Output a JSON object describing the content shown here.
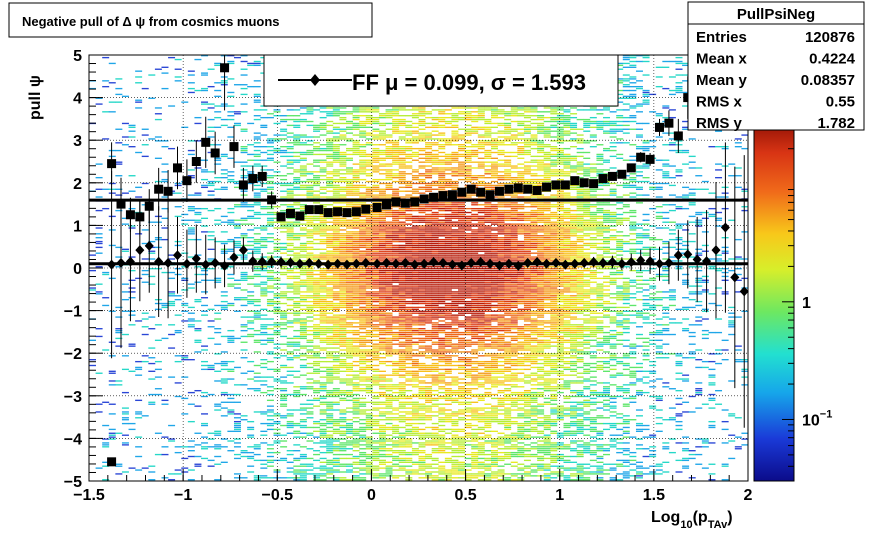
{
  "chart_data": {
    "type": "heatmap",
    "title": "Negative pull of Δ ψ from cosmics muons",
    "xlabel": "Log10(pTAv)",
    "xlabel_main": "Log",
    "xlabel_sub1": "10",
    "xlabel_paren_open": "(p",
    "xlabel_sub2": "TAv",
    "xlabel_paren_close": ")",
    "ylabel": "pull ψ",
    "xlim": [
      -1.5,
      2.0
    ],
    "ylim": [
      -5,
      5
    ],
    "x_ticks": [
      {
        "v": -1.5,
        "label": "−1.5"
      },
      {
        "v": -1.0,
        "label": "−1"
      },
      {
        "v": -0.5,
        "label": "−0.5"
      },
      {
        "v": 0.0,
        "label": "0"
      },
      {
        "v": 0.5,
        "label": "0.5"
      },
      {
        "v": 1.0,
        "label": "1"
      },
      {
        "v": 1.5,
        "label": "1.5"
      },
      {
        "v": 2.0,
        "label": "2"
      }
    ],
    "y_ticks": [
      {
        "v": 5,
        "label": "5"
      },
      {
        "v": 4,
        "label": "4"
      },
      {
        "v": 3,
        "label": "3"
      },
      {
        "v": 2,
        "label": "2"
      },
      {
        "v": 1,
        "label": "1"
      },
      {
        "v": 0,
        "label": "0"
      },
      {
        "v": -1,
        "label": "−1"
      },
      {
        "v": -2,
        "label": "−2"
      },
      {
        "v": -3,
        "label": "−3"
      },
      {
        "v": -4,
        "label": "−4"
      },
      {
        "v": -5,
        "label": "−5"
      }
    ],
    "grid": true,
    "colorbar": {
      "scale": "log",
      "range": [
        0.03,
        30
      ],
      "ticks": [
        {
          "v": 1,
          "label": "1"
        },
        {
          "v": 0.1,
          "label_main": "10",
          "label_exp": "−1"
        }
      ]
    },
    "stats": {
      "name": "PullPsiNeg",
      "rows": [
        {
          "label": "Entries",
          "value": "120876"
        },
        {
          "label": "Mean x",
          "value": "0.4224"
        },
        {
          "label": "Mean y",
          "value": "0.08357"
        },
        {
          "label": "RMS x",
          "value": "0.55"
        },
        {
          "label": "RMS y",
          "value": "1.782"
        }
      ]
    },
    "legend": {
      "text": "FF μ =  0.099, σ =   1.593",
      "placement": "top-center"
    },
    "fit_lines": {
      "mu": 0.099,
      "sigma": 1.593
    },
    "series": [
      {
        "marker": "diamond",
        "x": [
          -1.38,
          -1.33,
          -1.28,
          -1.23,
          -1.18,
          -1.13,
          -1.08,
          -1.03,
          -0.98,
          -0.93,
          -0.88,
          -0.83,
          -0.78,
          -0.73,
          -0.68,
          -0.63,
          -0.58,
          -0.53,
          -0.48,
          -0.43,
          -0.38,
          -0.33,
          -0.28,
          -0.23,
          -0.18,
          -0.13,
          -0.08,
          -0.03,
          0.03,
          0.08,
          0.13,
          0.18,
          0.23,
          0.28,
          0.33,
          0.38,
          0.43,
          0.48,
          0.53,
          0.58,
          0.63,
          0.68,
          0.73,
          0.78,
          0.83,
          0.88,
          0.93,
          0.98,
          1.03,
          1.08,
          1.13,
          1.18,
          1.23,
          1.28,
          1.33,
          1.38,
          1.43,
          1.48,
          1.53,
          1.58,
          1.63,
          1.68,
          1.73,
          1.78,
          1.83,
          1.88,
          1.93,
          1.98
        ],
        "y": [
          0.08,
          0.12,
          0.15,
          0.42,
          0.52,
          0.15,
          0.12,
          0.3,
          0.1,
          0.22,
          0.08,
          0.12,
          0.05,
          0.25,
          0.42,
          0.16,
          0.15,
          0.15,
          0.14,
          0.13,
          0.1,
          0.12,
          0.1,
          0.08,
          0.1,
          0.08,
          0.1,
          0.12,
          0.1,
          0.12,
          0.1,
          0.12,
          0.08,
          0.1,
          0.14,
          0.12,
          0.08,
          0.06,
          0.12,
          0.14,
          0.1,
          0.06,
          0.1,
          0.05,
          0.12,
          0.14,
          0.1,
          0.12,
          0.08,
          0.1,
          0.12,
          0.14,
          0.12,
          0.14,
          0.1,
          0.14,
          0.18,
          0.16,
          0.1,
          0.12,
          0.3,
          0.32,
          0.2,
          0.16,
          0.42,
          0.95,
          -0.22,
          -0.55
        ],
        "yerr": [
          2.2,
          2.0,
          1.4,
          1.2,
          1.1,
          1.3,
          1.3,
          0.9,
          0.8,
          0.8,
          0.7,
          0.6,
          0.5,
          0.4,
          0.3,
          0.25,
          0.2,
          0.15,
          0.13,
          0.12,
          0.1,
          0.1,
          0.1,
          0.1,
          0.1,
          0.1,
          0.1,
          0.1,
          0.1,
          0.1,
          0.1,
          0.1,
          0.1,
          0.1,
          0.1,
          0.1,
          0.1,
          0.1,
          0.1,
          0.1,
          0.1,
          0.1,
          0.1,
          0.1,
          0.1,
          0.1,
          0.1,
          0.1,
          0.1,
          0.1,
          0.1,
          0.12,
          0.12,
          0.15,
          0.15,
          0.2,
          0.25,
          0.3,
          0.4,
          0.5,
          0.6,
          0.8,
          1.0,
          1.2,
          1.6,
          2.0,
          2.6,
          3.2
        ]
      },
      {
        "marker": "square",
        "x": [
          -1.38,
          -1.33,
          -1.28,
          -1.23,
          -1.18,
          -1.13,
          -1.08,
          -1.03,
          -0.98,
          -0.93,
          -0.88,
          -0.83,
          -0.78,
          -0.73,
          -0.68,
          -0.63,
          -0.58,
          -0.53,
          -0.48,
          -0.43,
          -0.38,
          -0.33,
          -0.28,
          -0.23,
          -0.18,
          -0.13,
          -0.08,
          -0.03,
          0.03,
          0.08,
          0.13,
          0.18,
          0.23,
          0.28,
          0.33,
          0.38,
          0.43,
          0.48,
          0.53,
          0.58,
          0.63,
          0.68,
          0.73,
          0.78,
          0.83,
          0.88,
          0.93,
          0.98,
          1.03,
          1.08,
          1.13,
          1.18,
          1.23,
          1.28,
          1.33,
          1.38,
          1.43,
          1.48,
          1.53,
          1.58,
          1.63,
          1.68,
          1.73,
          1.78,
          1.83,
          1.88,
          1.93,
          1.98
        ],
        "y": [
          2.45,
          1.5,
          1.25,
          1.2,
          1.45,
          1.85,
          1.8,
          2.35,
          2.05,
          2.5,
          2.95,
          2.7,
          4.7,
          2.85,
          1.95,
          2.1,
          2.15,
          1.6,
          1.2,
          1.28,
          1.22,
          1.37,
          1.37,
          1.3,
          1.32,
          1.3,
          1.32,
          1.38,
          1.42,
          1.48,
          1.55,
          1.52,
          1.55,
          1.62,
          1.66,
          1.7,
          1.72,
          1.78,
          1.85,
          1.78,
          1.72,
          1.8,
          1.85,
          1.88,
          1.85,
          1.82,
          1.9,
          1.95,
          1.95,
          2.05,
          2.0,
          1.98,
          2.1,
          2.15,
          2.2,
          2.35,
          2.6,
          2.55,
          3.3,
          3.4,
          3.1,
          4.0,
          3.95,
          4.5,
          4.45,
          4.35,
          4.3,
          4.25
        ],
        "yerr": [
          0.5,
          0.4,
          0.4,
          0.4,
          0.4,
          0.5,
          0.5,
          0.5,
          0.5,
          0.5,
          0.6,
          0.5,
          1.0,
          0.5,
          0.4,
          0.3,
          0.25,
          0.2,
          0.1,
          0.08,
          0.07,
          0.06,
          0.05,
          0.05,
          0.05,
          0.05,
          0.05,
          0.05,
          0.05,
          0.05,
          0.05,
          0.05,
          0.05,
          0.05,
          0.05,
          0.05,
          0.05,
          0.05,
          0.05,
          0.05,
          0.05,
          0.05,
          0.05,
          0.05,
          0.05,
          0.05,
          0.05,
          0.05,
          0.05,
          0.05,
          0.05,
          0.06,
          0.06,
          0.07,
          0.08,
          0.1,
          0.12,
          0.15,
          0.2,
          0.3,
          0.4,
          0.5,
          0.6,
          0.7,
          0.8,
          0.9,
          1.0,
          1.0
        ]
      }
    ],
    "extra_points": [
      {
        "marker": "square",
        "x": -1.38,
        "y": -4.55
      }
    ]
  }
}
